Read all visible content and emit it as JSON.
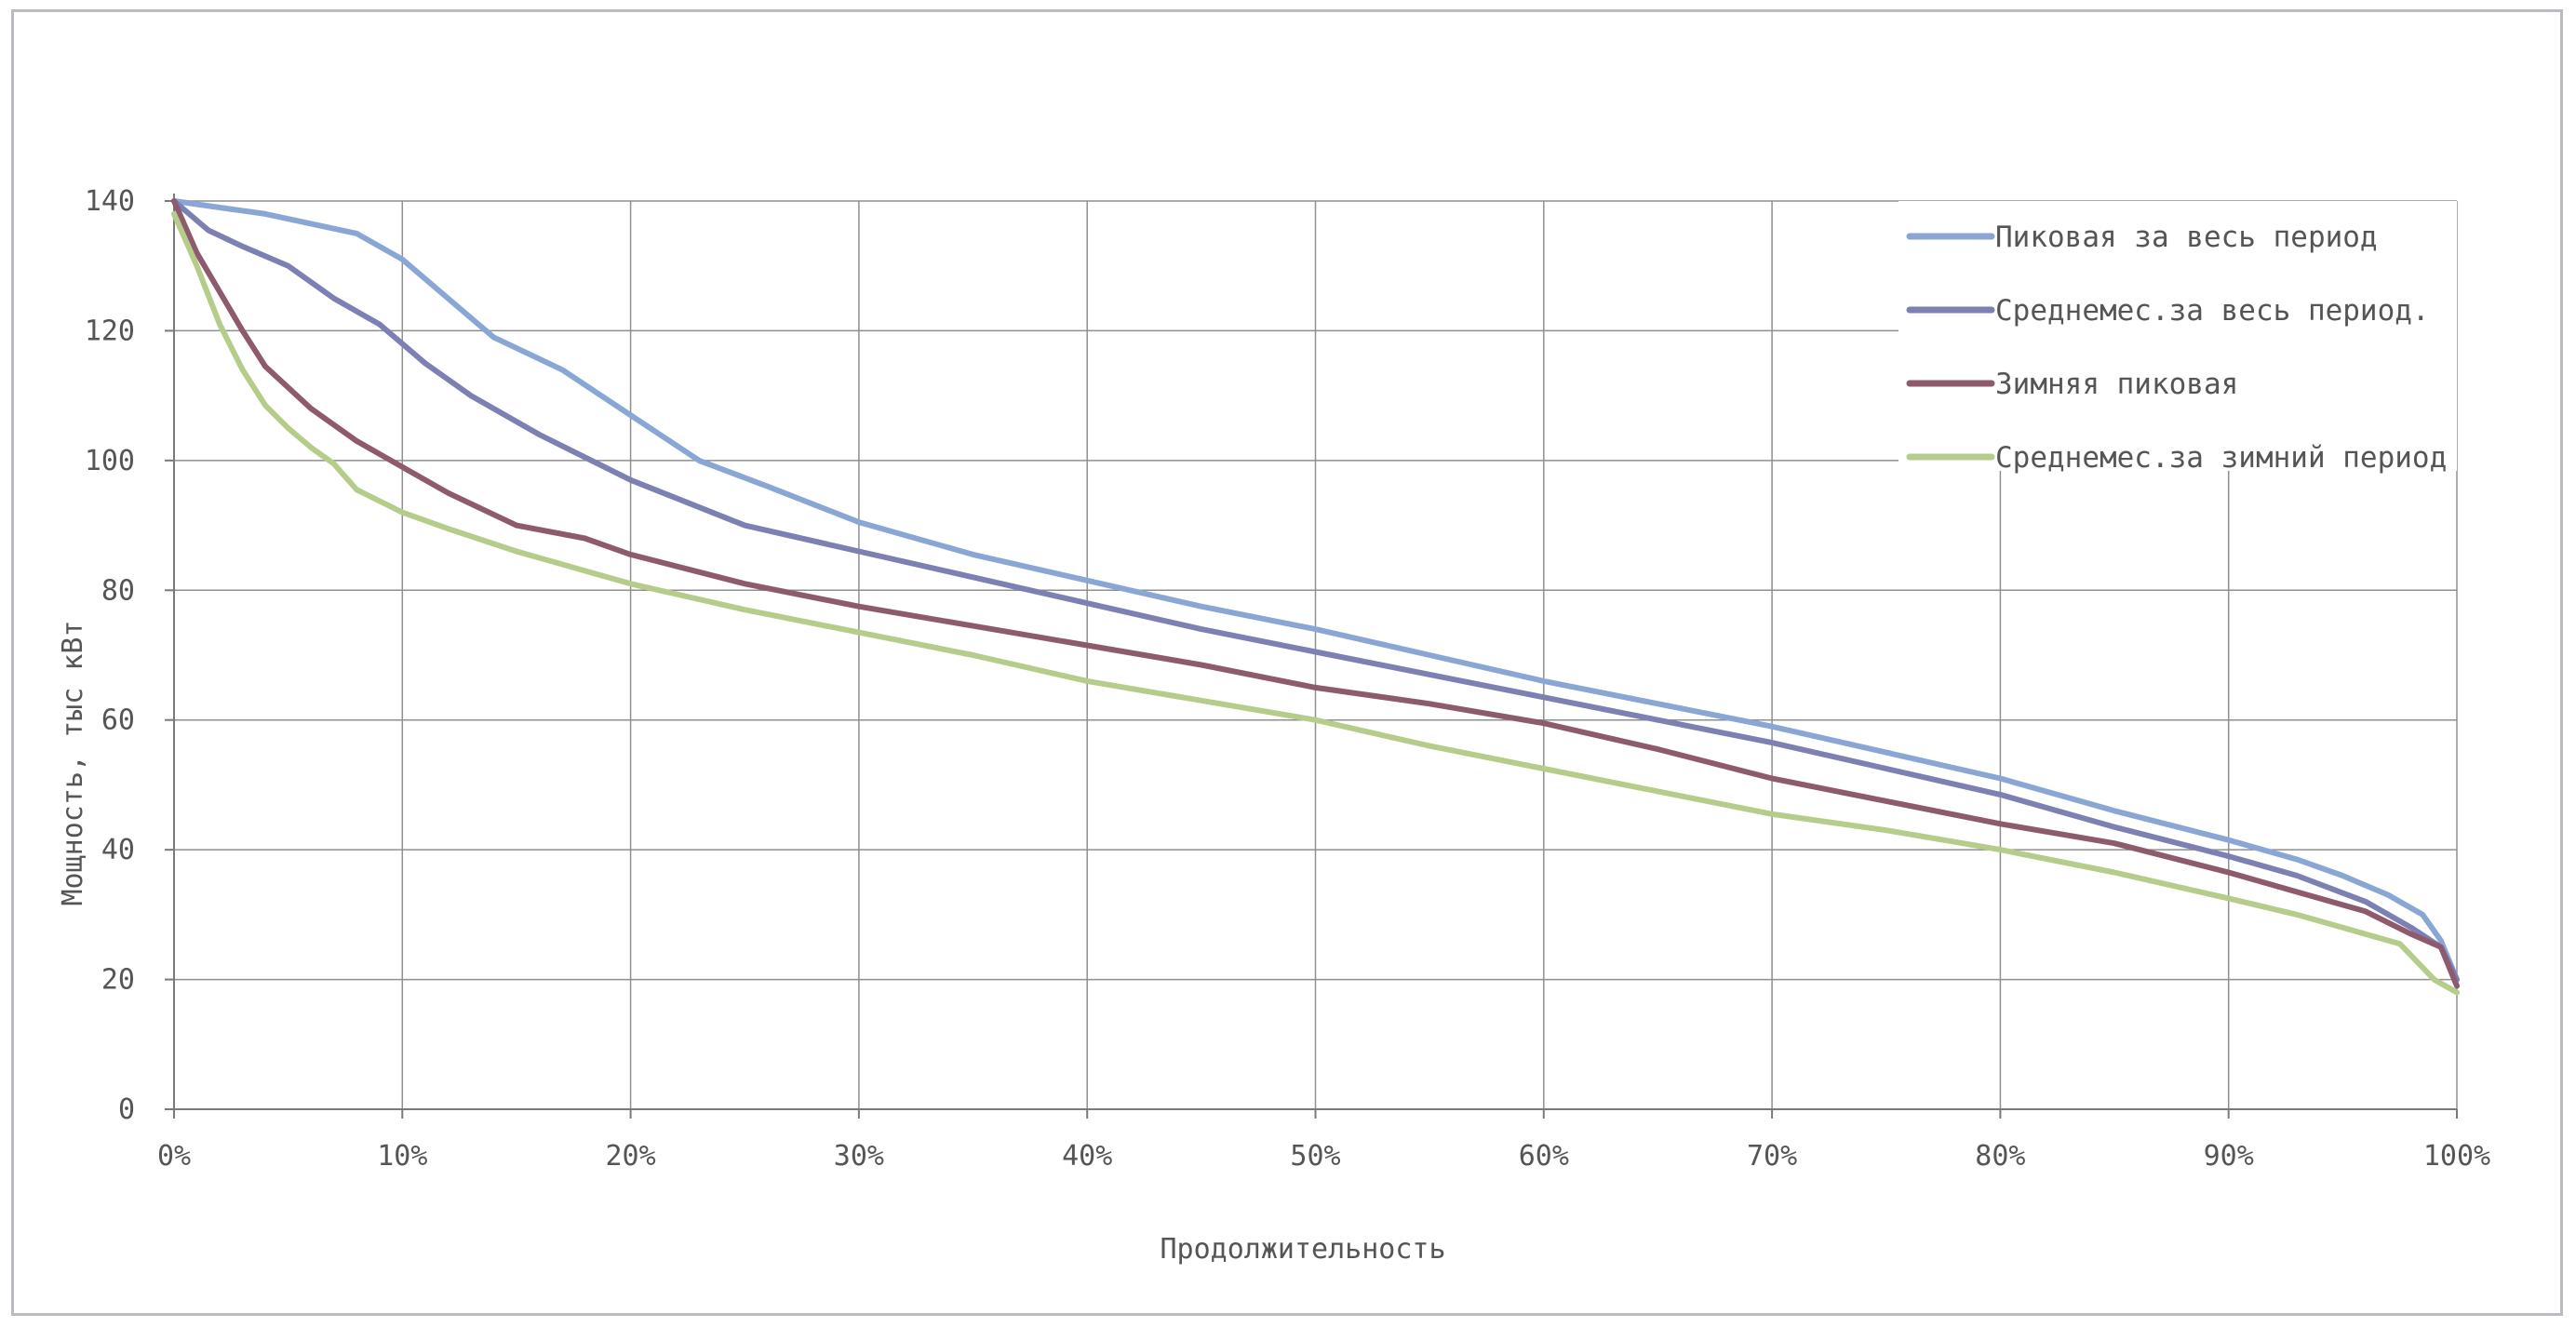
{
  "chart_data": {
    "type": "line",
    "title": "",
    "xlabel": "Продолжительность",
    "ylabel": "Мощность, тыс кВт",
    "xlim": [
      0,
      100
    ],
    "ylim": [
      0,
      140
    ],
    "x_unit": "%",
    "x_ticks": [
      "0%",
      "10%",
      "20%",
      "30%",
      "40%",
      "50%",
      "60%",
      "70%",
      "80%",
      "90%",
      "100%"
    ],
    "y_ticks": [
      "0",
      "20",
      "40",
      "60",
      "80",
      "100",
      "120",
      "140"
    ],
    "grid": true,
    "legend_position": "top-right",
    "series": [
      {
        "name": "Пиковая за весь период",
        "color": "#8aa6d4",
        "x": [
          0,
          2,
          4,
          6,
          8,
          10,
          12,
          14,
          17,
          20,
          23,
          26,
          30,
          35,
          40,
          45,
          50,
          55,
          60,
          65,
          70,
          75,
          80,
          85,
          90,
          93,
          95,
          97,
          98.5,
          99.3,
          100
        ],
        "y": [
          140,
          139,
          138,
          136.5,
          135,
          131,
          125,
          119,
          114,
          107,
          100,
          96,
          90.5,
          85.5,
          81.5,
          77.5,
          74,
          70,
          66,
          62.5,
          59,
          55,
          51,
          46,
          41.5,
          38.5,
          36,
          33,
          30,
          26,
          20
        ]
      },
      {
        "name": "Среднемес.за весь период.",
        "color": "#7c80b2",
        "x": [
          0,
          1.5,
          3,
          5,
          7,
          9,
          11,
          13,
          16,
          20,
          25,
          30,
          35,
          40,
          45,
          50,
          55,
          60,
          65,
          70,
          75,
          80,
          85,
          90,
          93,
          96,
          98,
          99.3,
          100
        ],
        "y": [
          140,
          135.5,
          133,
          130,
          125,
          121,
          115,
          110,
          104,
          97,
          90,
          86,
          82,
          78,
          74,
          70.5,
          67,
          63.5,
          60,
          56.5,
          52.5,
          48.5,
          43.5,
          39,
          36,
          32,
          28,
          25,
          20
        ]
      },
      {
        "name": "Зимняя пиковая",
        "color": "#8e5a6e",
        "x": [
          0,
          1,
          2,
          3,
          4,
          6,
          8,
          10,
          12,
          15,
          18,
          20,
          25,
          30,
          35,
          40,
          45,
          50,
          55,
          60,
          65,
          70,
          75,
          80,
          85,
          90,
          93,
          96,
          98,
          99.3,
          100
        ],
        "y": [
          140,
          132,
          126,
          120,
          114.5,
          108,
          103,
          99,
          95,
          90,
          88,
          85.5,
          81,
          77.5,
          74.5,
          71.5,
          68.5,
          65,
          62.5,
          59.5,
          55.5,
          51,
          47.5,
          44,
          41,
          36.5,
          33.5,
          30.5,
          27,
          25,
          19
        ]
      },
      {
        "name": "Среднемес.за зимний период",
        "color": "#b5cc8a",
        "x": [
          0,
          0.5,
          1,
          2,
          3,
          4,
          5,
          6,
          7,
          8,
          10,
          12,
          15,
          18,
          20,
          25,
          30,
          35,
          40,
          45,
          50,
          55,
          60,
          65,
          70,
          75,
          80,
          85,
          90,
          93,
          95,
          97.5,
          99,
          100
        ],
        "y": [
          138,
          134,
          130,
          121,
          114,
          108.5,
          105,
          102,
          99.5,
          95.5,
          92,
          89.5,
          86,
          83,
          81,
          77,
          73.5,
          70,
          66,
          63,
          60,
          56,
          52.5,
          49,
          45.5,
          43,
          40,
          36.5,
          32.5,
          30,
          28,
          25.5,
          20,
          18
        ]
      }
    ]
  }
}
